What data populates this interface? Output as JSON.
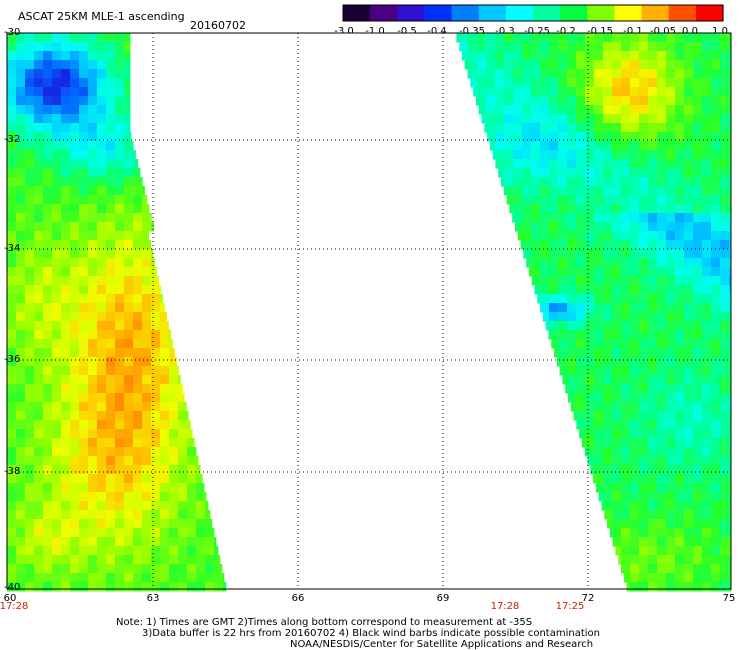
{
  "header": {
    "title": "ASCAT 25KM MLE-1 ascending",
    "date": "20160702"
  },
  "colorbar": {
    "ticks": [
      "-3.0",
      "-1.0",
      "-0.5",
      "-0.4",
      "-0.35",
      "-0.3",
      "-0.25",
      "-0.2",
      "-0.15",
      "-0.1",
      "-0.05",
      "0.0",
      "1.0"
    ],
    "colors": [
      "#1a0033",
      "#4b0082",
      "#3010d0",
      "#0030ff",
      "#0080ff",
      "#00c8ff",
      "#00ffff",
      "#00ffa0",
      "#00ff40",
      "#80ff00",
      "#ffff00",
      "#ffb000",
      "#ff5000",
      "#ff0000"
    ]
  },
  "y_axis": {
    "labels": [
      "-30",
      "-32",
      "-34",
      "-36",
      "-38",
      "-40"
    ]
  },
  "x_axis": {
    "labels": [
      "60",
      "63",
      "66",
      "69",
      "72",
      "75"
    ]
  },
  "times": [
    "17:28",
    "17:28",
    "17:25"
  ],
  "notes": [
    "Note: 1) Times are GMT 2)Times along bottom correspond to measurement at -35S",
    "3)Data buffer is 22 hrs from 20160702 4) Black wind barbs indicate possible contamination",
    "NOAA/NESDIS/Center for Satellite Applications and Research"
  ]
}
